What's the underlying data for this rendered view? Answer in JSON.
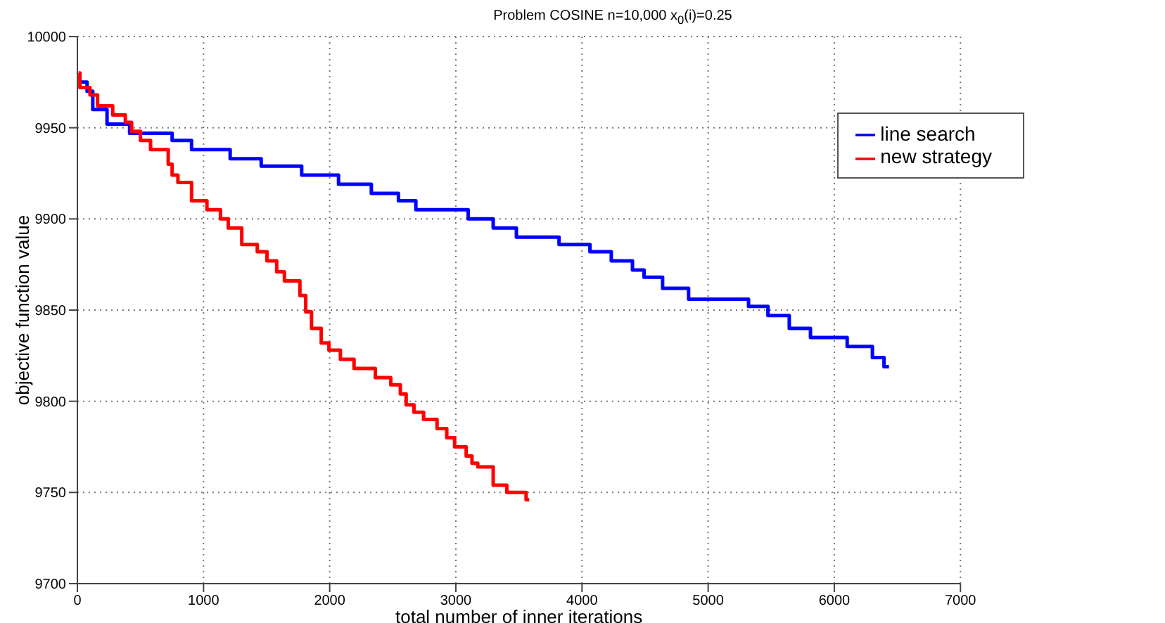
{
  "chart_data": {
    "type": "step",
    "title": "Problem COSINE  n=10,000  x$_{0}$(i)=0.25",
    "xlabel": "total number of inner iterations",
    "ylabel": "objective function value",
    "xlim": [
      0,
      7000
    ],
    "xticks": [
      0,
      1000,
      2000,
      3000,
      4000,
      5000,
      6000,
      7000
    ],
    "ylim": [
      9700,
      10000
    ],
    "yticks": [
      9700,
      9750,
      9800,
      9850,
      9900,
      9950,
      10000
    ],
    "grid": true,
    "legend": "top right",
    "marker": "none",
    "line_style": "solid",
    "series": [
      {
        "name": "line search",
        "color": "#0000ff",
        "x": [
          10,
          77,
          122,
          235,
          414,
          751,
          905,
          1211,
          1457,
          1778,
          2070,
          2330,
          2545,
          2683,
          3098,
          3296,
          3480,
          3818,
          4063,
          4232,
          4400,
          4492,
          4639,
          4845,
          5320,
          5474,
          5643,
          5811,
          6102,
          6302,
          6394,
          6433
        ],
        "values": [
          9975,
          9970,
          9960,
          9952,
          9947,
          9943,
          9938,
          9933,
          9929,
          9924,
          9919,
          9914,
          9910,
          9905,
          9900,
          9895,
          9890,
          9886,
          9882,
          9877,
          9872,
          9868,
          9862,
          9856,
          9852,
          9847,
          9840,
          9835,
          9830,
          9824,
          9819,
          9819
        ]
      },
      {
        "name": "new strategy",
        "color": "#ff0000",
        "x": [
          10,
          20,
          100,
          160,
          280,
          380,
          430,
          500,
          580,
          720,
          751,
          797,
          905,
          1027,
          1134,
          1196,
          1303,
          1426,
          1503,
          1580,
          1641,
          1764,
          1810,
          1856,
          1933,
          1994,
          2085,
          2193,
          2362,
          2484,
          2560,
          2606,
          2668,
          2744,
          2851,
          2928,
          2990,
          3082,
          3128,
          3174,
          3296,
          3404,
          3557,
          3582
        ],
        "values": [
          9980,
          9972,
          9968,
          9962,
          9957,
          9953,
          9948,
          9943,
          9938,
          9930,
          9924,
          9920,
          9910,
          9905,
          9900,
          9895,
          9886,
          9882,
          9877,
          9871,
          9866,
          9858,
          9849,
          9840,
          9832,
          9828,
          9823,
          9818,
          9813,
          9809,
          9804,
          9798,
          9794,
          9790,
          9785,
          9780,
          9775,
          9770,
          9766,
          9764,
          9754,
          9750,
          9746,
          9746
        ]
      }
    ]
  }
}
